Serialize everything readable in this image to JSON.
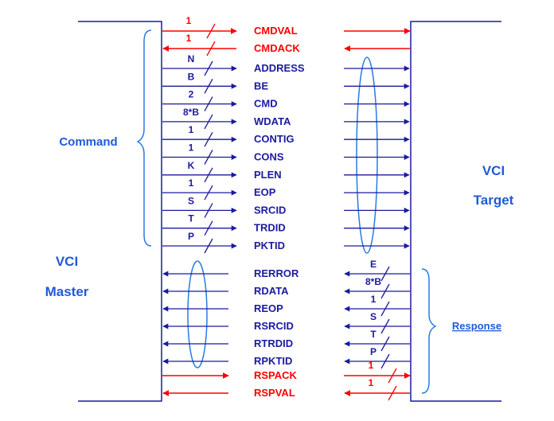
{
  "master": {
    "line1": "VCI",
    "line2": "Master"
  },
  "target": {
    "line1": "VCI",
    "line2": "Target"
  },
  "groups": {
    "command": "Command",
    "response": "Response"
  },
  "colors": {
    "blue": "#1a1aa0",
    "red": "#ff0000",
    "label_blue": "#1f5bd6",
    "ellipse": "#2a7ae2"
  },
  "handshake_top": [
    {
      "name": "CMDVAL",
      "width": "1"
    },
    {
      "name": "CMDACK",
      "width": "1"
    }
  ],
  "command": [
    {
      "name": "ADDRESS",
      "width": "N"
    },
    {
      "name": "BE",
      "width": "B"
    },
    {
      "name": "CMD",
      "width": "2"
    },
    {
      "name": "WDATA",
      "width": "8*B"
    },
    {
      "name": "CONTIG",
      "width": "1"
    },
    {
      "name": "CONS",
      "width": "1"
    },
    {
      "name": "PLEN",
      "width": "K"
    },
    {
      "name": "EOP",
      "width": "1"
    },
    {
      "name": "SRCID",
      "width": "S"
    },
    {
      "name": "TRDID",
      "width": "T"
    },
    {
      "name": "PKTID",
      "width": "P"
    }
  ],
  "response": [
    {
      "name": "RERROR",
      "width": "E"
    },
    {
      "name": "RDATA",
      "width": "8*B"
    },
    {
      "name": "REOP",
      "width": "1"
    },
    {
      "name": "RSRCID",
      "width": "S"
    },
    {
      "name": "RTRDID",
      "width": "T"
    },
    {
      "name": "RPKTID",
      "width": "P"
    }
  ],
  "handshake_bottom": [
    {
      "name": "RSPACK",
      "width": "1"
    },
    {
      "name": "RSPVAL",
      "width": "1"
    }
  ]
}
